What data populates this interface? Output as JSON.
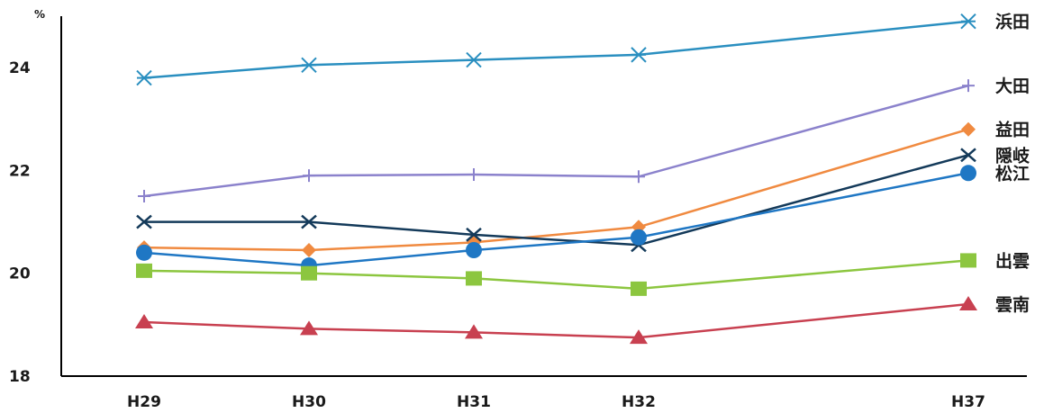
{
  "chart_data": {
    "type": "line",
    "unit": "%",
    "categories": [
      "H29",
      "H30",
      "H31",
      "H32",
      "H37"
    ],
    "x_positions": [
      0,
      1,
      2,
      3,
      5
    ],
    "ylim": [
      18,
      25
    ],
    "yticks": [
      18,
      20,
      22,
      24
    ],
    "grid": false,
    "legend": "labels at right end of each line",
    "series": [
      {
        "name": "浜田",
        "values": [
          23.8,
          24.05,
          24.15,
          24.25,
          24.9
        ],
        "color": "#2a8fc0",
        "marker": "asterisk"
      },
      {
        "name": "大田",
        "values": [
          21.5,
          21.9,
          21.92,
          21.88,
          23.65
        ],
        "color": "#8b82cc",
        "marker": "plus"
      },
      {
        "name": "益田",
        "values": [
          20.5,
          20.45,
          20.6,
          20.9,
          22.8
        ],
        "color": "#f08a40",
        "marker": "diamond"
      },
      {
        "name": "隠岐",
        "values": [
          21.0,
          21.0,
          20.75,
          20.55,
          22.3
        ],
        "color": "#143a5a",
        "marker": "x"
      },
      {
        "name": "松江",
        "values": [
          20.4,
          20.15,
          20.45,
          20.7,
          21.95
        ],
        "color": "#1f77c4",
        "marker": "circle"
      },
      {
        "name": "出雲",
        "values": [
          20.05,
          20.0,
          19.9,
          19.7,
          20.25
        ],
        "color": "#8cc63f",
        "marker": "square"
      },
      {
        "name": "雲南",
        "values": [
          19.05,
          18.92,
          18.85,
          18.75,
          19.4
        ],
        "color": "#c84050",
        "marker": "triangle"
      }
    ]
  }
}
